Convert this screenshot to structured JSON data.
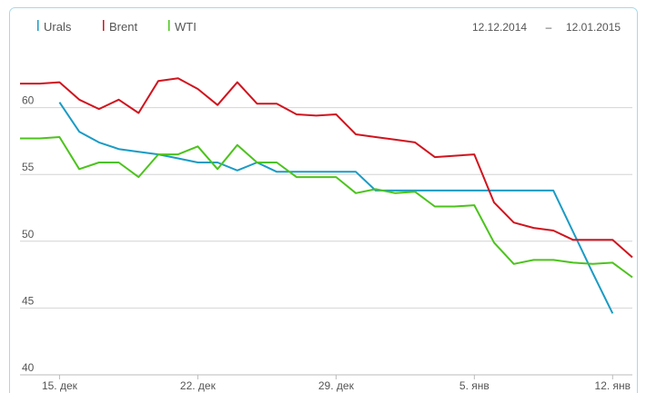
{
  "chart_data": {
    "type": "line",
    "date_from": "12.12.2014",
    "date_separator": "–",
    "date_to": "12.01.2015",
    "categories": [
      null,
      null,
      "15. дек",
      null,
      null,
      null,
      null,
      null,
      null,
      "22. дек",
      null,
      null,
      null,
      null,
      null,
      null,
      "29. дек",
      null,
      null,
      null,
      null,
      null,
      null,
      "5. янв",
      null,
      null,
      null,
      null,
      null,
      null,
      "12. янв",
      null
    ],
    "series": [
      {
        "name": "Urals",
        "color": "#1a9bc4",
        "values": [
          null,
          null,
          60.4,
          58.2,
          57.4,
          56.9,
          56.7,
          56.5,
          56.2,
          55.9,
          55.9,
          55.3,
          55.9,
          55.2,
          55.2,
          55.2,
          55.2,
          55.2,
          53.8,
          53.8,
          53.8,
          53.8,
          53.8,
          53.8,
          53.8,
          53.8,
          53.8,
          53.8,
          50.7,
          47.6,
          44.6,
          null
        ]
      },
      {
        "name": "Brent",
        "color": "#d0141e",
        "values": [
          61.8,
          61.8,
          61.9,
          60.6,
          59.9,
          60.6,
          59.6,
          62.0,
          62.2,
          61.4,
          60.2,
          61.9,
          60.3,
          60.3,
          59.5,
          59.4,
          59.5,
          58.0,
          57.8,
          57.6,
          57.4,
          56.3,
          56.4,
          56.5,
          52.9,
          51.4,
          51.0,
          50.8,
          50.1,
          50.1,
          50.1,
          48.8
        ]
      },
      {
        "name": "WTI",
        "color": "#4cc31c",
        "values": [
          57.7,
          57.7,
          57.8,
          55.4,
          55.9,
          55.9,
          54.8,
          56.5,
          56.5,
          57.1,
          55.4,
          57.2,
          55.9,
          55.9,
          54.8,
          54.8,
          54.8,
          53.6,
          53.9,
          53.6,
          53.7,
          52.6,
          52.6,
          52.7,
          49.9,
          48.3,
          48.6,
          48.6,
          48.4,
          48.3,
          48.4,
          47.3
        ]
      }
    ],
    "ylim": [
      40,
      65
    ],
    "yticks": [
      40,
      45,
      50,
      55,
      60
    ],
    "grid": true
  }
}
